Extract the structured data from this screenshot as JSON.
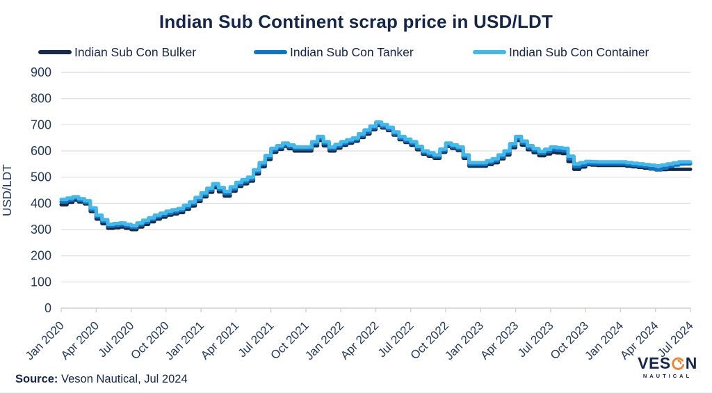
{
  "title": "Indian Sub Continent scrap price in USD/LDT",
  "source": {
    "label": "Source:",
    "text": " Veson Nautical, Jul 2024"
  },
  "logo": {
    "name": "VESON NAUTICAL",
    "brand_left": "VES",
    "brand_right": "N",
    "sub": "NAUTICAL",
    "accent_color": "#f5822a"
  },
  "colors": {
    "title_text": "#13254b",
    "axis_text": "#24395e",
    "gridline": "#e4e4e4",
    "axis_line": "#cfcfcf"
  },
  "chart_data": {
    "type": "line",
    "title": "Indian Sub Continent scrap price in USD/LDT",
    "xlabel": "",
    "ylabel": "USD/LDT",
    "ylim": [
      0,
      900
    ],
    "y_ticks": [
      0,
      100,
      200,
      300,
      400,
      500,
      600,
      700,
      800,
      900
    ],
    "grid": "horizontal",
    "legend_position": "top",
    "x_tick_labels": [
      "Jan 2020",
      "Apr 2020",
      "Jul 2020",
      "Oct 2020",
      "Jan 2021",
      "Apr 2021",
      "Jul 2021",
      "Oct 2021",
      "Jan 2022",
      "Apr 2022",
      "Jul 2022",
      "Oct 2022",
      "Jan 2023",
      "Apr 2023",
      "Jul 2023",
      "Oct 2023",
      "Jan 2024",
      "Apr 2024",
      "Jul 2024"
    ],
    "categories": [
      "Jan 2020",
      "Feb 2020",
      "Mar 2020",
      "Apr 2020",
      "May 2020",
      "Jun 2020",
      "Jul 2020",
      "Aug 2020",
      "Sep 2020",
      "Oct 2020",
      "Nov 2020",
      "Dec 2020",
      "Jan 2021",
      "Feb 2021",
      "Mar 2021",
      "Apr 2021",
      "May 2021",
      "Jun 2021",
      "Jul 2021",
      "Aug 2021",
      "Sep 2021",
      "Oct 2021",
      "Nov 2021",
      "Dec 2021",
      "Jan 2022",
      "Feb 2022",
      "Mar 2022",
      "Apr 2022",
      "May 2022",
      "Jun 2022",
      "Jul 2022",
      "Aug 2022",
      "Sep 2022",
      "Oct 2022",
      "Nov 2022",
      "Dec 2022",
      "Jan 2023",
      "Feb 2023",
      "Mar 2023",
      "Apr 2023",
      "May 2023",
      "Jun 2023",
      "Jul 2023",
      "Aug 2023",
      "Sep 2023",
      "Oct 2023",
      "Nov 2023",
      "Dec 2023",
      "Jan 2024",
      "Feb 2024",
      "Mar 2024",
      "Apr 2024",
      "May 2024",
      "Jun 2024",
      "Jul 2024"
    ],
    "series": [
      {
        "id": "bulker",
        "name": "Indian Sub Con Bulker",
        "color": "#192b44",
        "values": [
          395,
          413,
          398,
          340,
          305,
          310,
          300,
          320,
          340,
          355,
          365,
          390,
          425,
          460,
          428,
          465,
          485,
          540,
          595,
          618,
          600,
          600,
          640,
          600,
          622,
          638,
          665,
          698,
          678,
          643,
          622,
          588,
          572,
          618,
          602,
          542,
          542,
          555,
          585,
          640,
          605,
          582,
          595,
          590,
          530,
          548,
          545,
          545,
          545,
          540,
          535,
          528,
          530,
          530,
          530
        ]
      },
      {
        "id": "tanker",
        "name": "Indian Sub Con Tanker",
        "color": "#1274c5",
        "values": [
          405,
          420,
          403,
          348,
          313,
          318,
          308,
          328,
          348,
          362,
          373,
          398,
          432,
          468,
          437,
          472,
          492,
          548,
          603,
          623,
          608,
          608,
          648,
          608,
          628,
          643,
          672,
          703,
          683,
          648,
          628,
          593,
          578,
          623,
          608,
          548,
          548,
          562,
          592,
          648,
          612,
          590,
          605,
          600,
          540,
          552,
          550,
          550,
          550,
          545,
          540,
          528,
          542,
          550,
          552
        ]
      },
      {
        "id": "container",
        "name": "Indian Sub Con Container",
        "color": "#45b8e8",
        "values": [
          415,
          425,
          410,
          355,
          320,
          325,
          315,
          335,
          355,
          370,
          380,
          405,
          440,
          475,
          445,
          480,
          500,
          555,
          610,
          630,
          615,
          615,
          655,
          615,
          635,
          650,
          680,
          710,
          690,
          655,
          635,
          600,
          585,
          630,
          615,
          555,
          555,
          570,
          600,
          655,
          620,
          598,
          615,
          610,
          550,
          560,
          558,
          558,
          558,
          553,
          548,
          543,
          550,
          558,
          558
        ]
      }
    ]
  }
}
